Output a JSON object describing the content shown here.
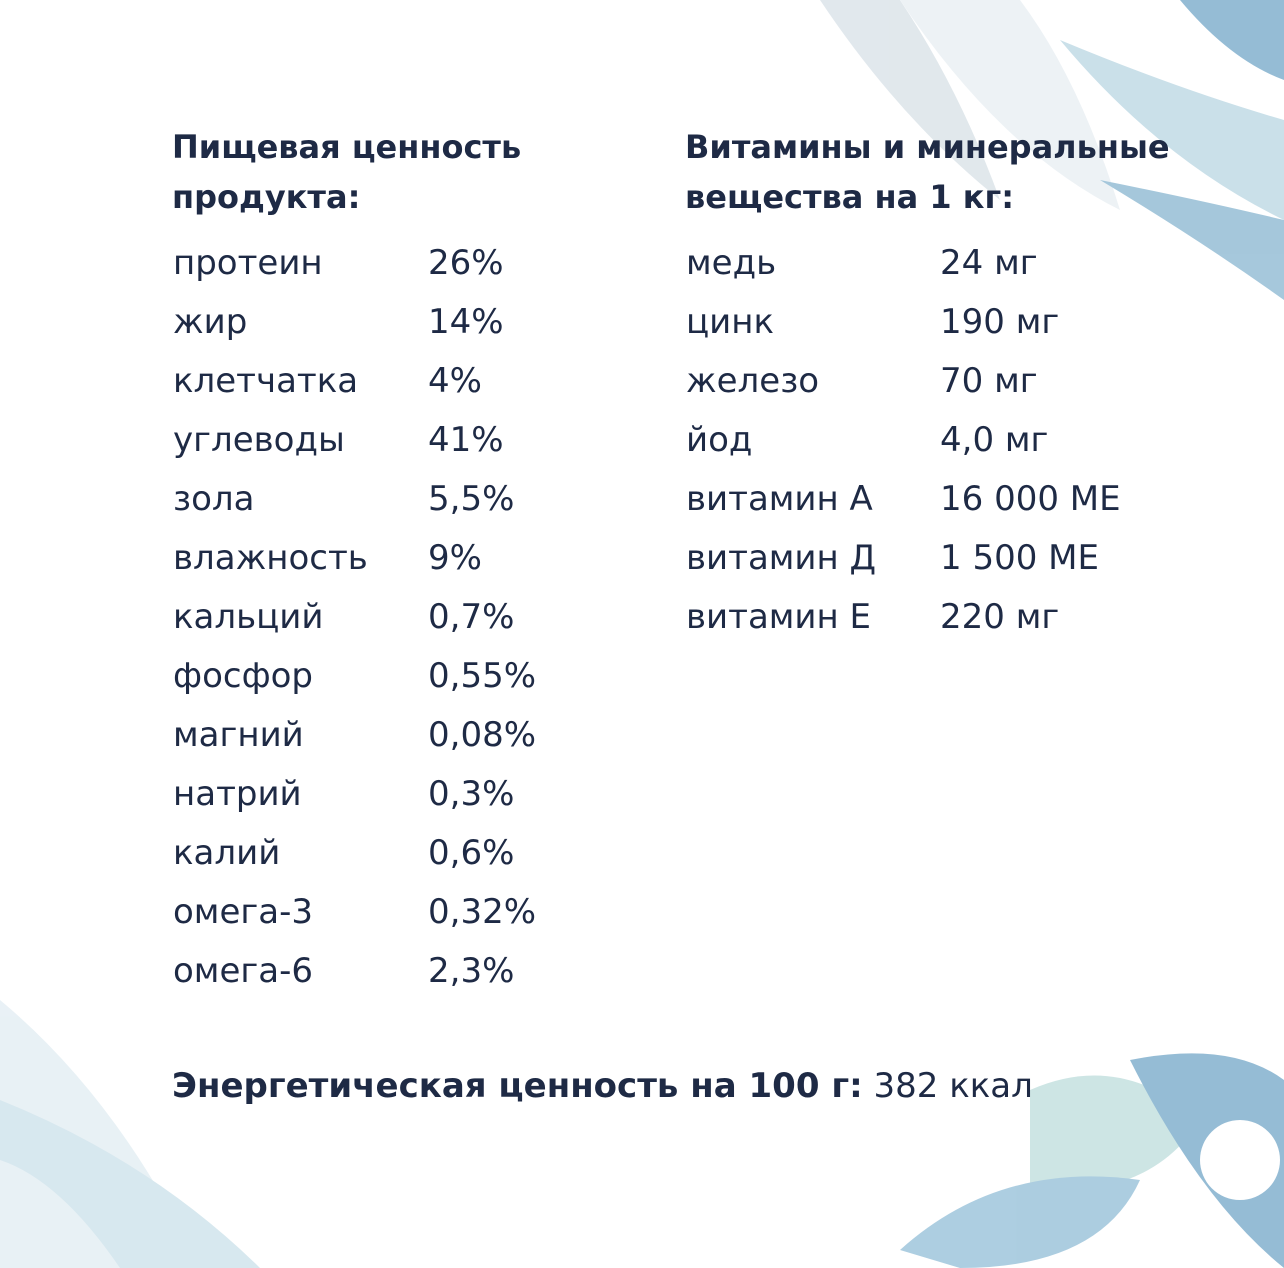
{
  "left": {
    "title_lines": [
      "Пищевая ценность",
      "продукта:"
    ],
    "rows": [
      [
        "протеин",
        "26%"
      ],
      [
        "жир",
        "14%"
      ],
      [
        "клетчатка",
        "4%"
      ],
      [
        "углеводы",
        "41%"
      ],
      [
        "зола",
        "5,5%"
      ],
      [
        "влажность",
        "9%"
      ],
      [
        "кальций",
        "0,7%"
      ],
      [
        "фосфор",
        "0,55%"
      ],
      [
        "магний",
        "0,08%"
      ],
      [
        "натрий",
        "0,3%"
      ],
      [
        "калий",
        "0,6%"
      ],
      [
        "омега-3",
        "0,32%"
      ],
      [
        "омега-6",
        "2,3%"
      ]
    ]
  },
  "right": {
    "title_lines": [
      "Витамины и минеральные",
      "вещества на 1 кг:"
    ],
    "rows": [
      [
        "медь",
        "24 мг"
      ],
      [
        "цинк",
        "190 мг"
      ],
      [
        "железо",
        "70 мг"
      ],
      [
        "йод",
        "4,0 мг"
      ],
      [
        "витамин А",
        "16 000 МЕ"
      ],
      [
        "витамин Д",
        "1 500 МЕ"
      ],
      [
        "витамин Е",
        "220 мг"
      ]
    ]
  },
  "footer": {
    "label": "Энергетическая ценность на 100 г:",
    "value": "382 ккал"
  }
}
